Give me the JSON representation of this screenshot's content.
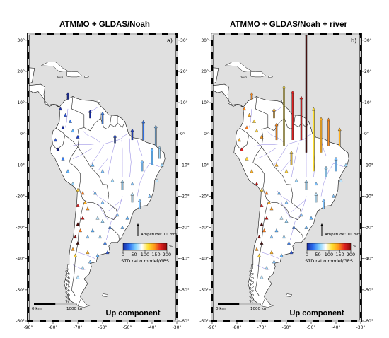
{
  "panels": [
    {
      "id": "a",
      "title": "ATMMO + GLDAS/Noah",
      "letter": "a)",
      "component": "Up component",
      "amplitude_label": "Amplitude: 10 mm",
      "scale_labels": [
        "0 km",
        "1000 km"
      ],
      "colorbar": {
        "ticks": [
          "0",
          "50",
          "100",
          "150",
          "200"
        ],
        "unit": "%",
        "label": "STD ratio model/GPS"
      },
      "arrows": [
        {
          "lon": -43.5,
          "lat": -2,
          "len": 28,
          "c": "#2f6fe0"
        },
        {
          "lon": -38.5,
          "lat": -4,
          "len": 30,
          "c": "#7fc3ff"
        },
        {
          "lon": -40,
          "lat": -10,
          "len": 24,
          "c": "#62b8ff"
        },
        {
          "lon": -37,
          "lat": -8,
          "len": 18,
          "c": "#9ad8ff"
        },
        {
          "lon": -44,
          "lat": -12,
          "len": 16,
          "c": "#7fc3ff"
        },
        {
          "lon": -48,
          "lat": -2,
          "len": 16,
          "c": "#1e3fc4"
        },
        {
          "lon": -55,
          "lat": -3,
          "len": 12,
          "c": "#2a4fd0"
        },
        {
          "lon": -60,
          "lat": 3,
          "len": 18,
          "c": "#3f7fe8"
        },
        {
          "lon": -65,
          "lat": 5,
          "len": 12,
          "c": "#14289a"
        },
        {
          "lon": -74,
          "lat": 11,
          "len": 10,
          "c": "#1a2a90"
        },
        {
          "lon": -52,
          "lat": -18,
          "len": 14,
          "c": "#9ad8ff"
        },
        {
          "lon": -48,
          "lat": -22,
          "len": 14,
          "c": "#bde6ff"
        },
        {
          "lon": -45,
          "lat": -24,
          "len": 14,
          "c": "#7fc3ff"
        }
      ],
      "triangles": [
        {
          "lon": -77,
          "lat": 8,
          "c": "#1b2fa8"
        },
        {
          "lon": -75,
          "lat": 6,
          "c": "#2a55d8"
        },
        {
          "lon": -73,
          "lat": 4,
          "c": "#3a7ff0"
        },
        {
          "lon": -76,
          "lat": 2,
          "c": "#14289a"
        },
        {
          "lon": -72,
          "lat": 1,
          "c": "#5fb4ff"
        },
        {
          "lon": -70,
          "lat": -1,
          "c": "#1e3fc4"
        },
        {
          "lon": -79,
          "lat": -2,
          "c": "#2a55d8"
        },
        {
          "lon": -78,
          "lat": -5,
          "c": "#0e1a7a"
        },
        {
          "lon": -76,
          "lat": -8,
          "c": "#3a7ff0"
        },
        {
          "lon": -74,
          "lat": -12,
          "c": "#5fb4ff"
        },
        {
          "lon": -72,
          "lat": -16,
          "c": "#9ad8ff"
        },
        {
          "lon": -70,
          "lat": -18,
          "c": "#ffd23a"
        },
        {
          "lon": -68,
          "lat": -19,
          "c": "#ff7a1a"
        },
        {
          "lon": -67,
          "lat": -22,
          "c": "#ffb020"
        },
        {
          "lon": -70,
          "lat": -23,
          "c": "#e02020"
        },
        {
          "lon": -66,
          "lat": -24,
          "c": "#ff9a1a"
        },
        {
          "lon": -68,
          "lat": -27,
          "c": "#c01010"
        },
        {
          "lon": -70,
          "lat": -29,
          "c": "#4a0a0a"
        },
        {
          "lon": -69,
          "lat": -31,
          "c": "#ff7a1a"
        },
        {
          "lon": -71,
          "lat": -33,
          "c": "#7a1010"
        },
        {
          "lon": -70,
          "lat": -35,
          "c": "#3a0808"
        },
        {
          "lon": -72,
          "lat": -37,
          "c": "#ff9a1a"
        },
        {
          "lon": -71,
          "lat": -39,
          "c": "#ffd23a"
        },
        {
          "lon": -66,
          "lat": -33,
          "c": "#7fc3ff"
        },
        {
          "lon": -64,
          "lat": -31,
          "c": "#5fb4ff"
        },
        {
          "lon": -61,
          "lat": -33,
          "c": "#9ad8ff"
        },
        {
          "lon": -59,
          "lat": -35,
          "c": "#3a7ff0"
        },
        {
          "lon": -58,
          "lat": -38,
          "c": "#2a55d8"
        },
        {
          "lon": -62,
          "lat": -39,
          "c": "#5fb4ff"
        },
        {
          "lon": -65,
          "lat": -41,
          "c": "#7fc3ff"
        },
        {
          "lon": -68,
          "lat": -43,
          "c": "#9ad8ff"
        },
        {
          "lon": -70,
          "lat": -46,
          "c": "#bde6ff"
        },
        {
          "lon": -66,
          "lat": -38,
          "c": "#ffb020"
        },
        {
          "lon": -54,
          "lat": -26,
          "c": "#7fc3ff"
        },
        {
          "lon": -52,
          "lat": -30,
          "c": "#5fb4ff"
        },
        {
          "lon": -57,
          "lat": -30,
          "c": "#3a7ff0"
        },
        {
          "lon": -60,
          "lat": -28,
          "c": "#9ad8ff"
        },
        {
          "lon": -62,
          "lat": -27,
          "c": "#bde6ff"
        },
        {
          "lon": -50,
          "lat": -27,
          "c": "#5fb4ff"
        },
        {
          "lon": -48,
          "lat": -16,
          "c": "#7fc3ff"
        },
        {
          "lon": -56,
          "lat": -15,
          "c": "#9ad8ff"
        },
        {
          "lon": -60,
          "lat": -12,
          "c": "#7fc3ff"
        },
        {
          "lon": -64,
          "lat": -10,
          "c": "#5fb4ff"
        },
        {
          "lon": -38,
          "lat": -15,
          "c": "#bde6ff"
        },
        {
          "lon": -36,
          "lat": -10,
          "c": "#9ad8ff"
        },
        {
          "lon": -41,
          "lat": -20,
          "c": "#7fc3ff"
        },
        {
          "lon": -60,
          "lat": -22,
          "c": "#7fc3ff"
        },
        {
          "lon": -63,
          "lat": -19,
          "c": "#5fb4ff"
        }
      ]
    },
    {
      "id": "b",
      "title": "ATMMO + GLDAS/Noah + river",
      "letter": "b)",
      "component": "Up component",
      "amplitude_label": "Amplitude: 10 mm",
      "scale_labels": [
        "0 km",
        "1000 km"
      ],
      "colorbar": {
        "ticks": [
          "0",
          "50",
          "100",
          "150",
          "200"
        ],
        "unit": "%",
        "label": "STD ratio model/GPS"
      },
      "arrows": [
        {
          "lon": -52,
          "lat": -6,
          "len": 210,
          "c": "#4a0808"
        },
        {
          "lon": -57.5,
          "lat": -2,
          "len": 70,
          "c": "#e02020"
        },
        {
          "lon": -54,
          "lat": -2,
          "len": 62,
          "c": "#e02020"
        },
        {
          "lon": -61,
          "lat": -4,
          "len": 86,
          "c": "#ffe030"
        },
        {
          "lon": -49,
          "lat": -12,
          "len": 90,
          "c": "#ffe030"
        },
        {
          "lon": -46,
          "lat": -6,
          "len": 50,
          "c": "#ffb020"
        },
        {
          "lon": -43,
          "lat": -4,
          "len": 40,
          "c": "#ff8a1a"
        },
        {
          "lon": -38.5,
          "lat": -4,
          "len": 26,
          "c": "#ffb020"
        },
        {
          "lon": -64,
          "lat": -2,
          "len": 24,
          "c": "#ff8a1a"
        },
        {
          "lon": -58,
          "lat": -10,
          "len": 20,
          "c": "#ffd040"
        },
        {
          "lon": -40,
          "lat": -12,
          "len": 20,
          "c": "#7fc3ff"
        },
        {
          "lon": -44,
          "lat": -14,
          "len": 16,
          "c": "#9ad8ff"
        },
        {
          "lon": -52,
          "lat": -18,
          "len": 14,
          "c": "#9ad8ff"
        },
        {
          "lon": -48,
          "lat": -22,
          "len": 14,
          "c": "#bde6ff"
        },
        {
          "lon": -45,
          "lat": -24,
          "len": 14,
          "c": "#7fc3ff"
        },
        {
          "lon": -74,
          "lat": 11,
          "len": 10,
          "c": "#ff8a1a"
        },
        {
          "lon": -65,
          "lat": 5,
          "len": 14,
          "c": "#ffb020"
        }
      ],
      "triangles": [
        {
          "lon": -77,
          "lat": 8,
          "c": "#ff8a1a"
        },
        {
          "lon": -75,
          "lat": 6,
          "c": "#ffb020"
        },
        {
          "lon": -73,
          "lat": 4,
          "c": "#ffd23a"
        },
        {
          "lon": -76,
          "lat": 2,
          "c": "#ff7a1a"
        },
        {
          "lon": -72,
          "lat": 1,
          "c": "#ffd23a"
        },
        {
          "lon": -70,
          "lat": -1,
          "c": "#ff9a1a"
        },
        {
          "lon": -79,
          "lat": -2,
          "c": "#ffb020"
        },
        {
          "lon": -78,
          "lat": -5,
          "c": "#e02020"
        },
        {
          "lon": -76,
          "lat": -8,
          "c": "#ffd23a"
        },
        {
          "lon": -74,
          "lat": -12,
          "c": "#ffb020"
        },
        {
          "lon": -72,
          "lat": -16,
          "c": "#c01010"
        },
        {
          "lon": -70,
          "lat": -18,
          "c": "#ffd23a"
        },
        {
          "lon": -68,
          "lat": -19,
          "c": "#ff7a1a"
        },
        {
          "lon": -67,
          "lat": -22,
          "c": "#ffb020"
        },
        {
          "lon": -70,
          "lat": -23,
          "c": "#e02020"
        },
        {
          "lon": -66,
          "lat": -24,
          "c": "#ff9a1a"
        },
        {
          "lon": -68,
          "lat": -27,
          "c": "#c01010"
        },
        {
          "lon": -70,
          "lat": -29,
          "c": "#4a0a0a"
        },
        {
          "lon": -69,
          "lat": -31,
          "c": "#ff7a1a"
        },
        {
          "lon": -71,
          "lat": -33,
          "c": "#7a1010"
        },
        {
          "lon": -70,
          "lat": -35,
          "c": "#3a0808"
        },
        {
          "lon": -72,
          "lat": -37,
          "c": "#ff9a1a"
        },
        {
          "lon": -71,
          "lat": -39,
          "c": "#ffd23a"
        },
        {
          "lon": -66,
          "lat": -33,
          "c": "#7fc3ff"
        },
        {
          "lon": -64,
          "lat": -31,
          "c": "#5fb4ff"
        },
        {
          "lon": -61,
          "lat": -33,
          "c": "#9ad8ff"
        },
        {
          "lon": -59,
          "lat": -35,
          "c": "#3a7ff0"
        },
        {
          "lon": -58,
          "lat": -38,
          "c": "#2a55d8"
        },
        {
          "lon": -62,
          "lat": -39,
          "c": "#5fb4ff"
        },
        {
          "lon": -65,
          "lat": -41,
          "c": "#7fc3ff"
        },
        {
          "lon": -68,
          "lat": -43,
          "c": "#9ad8ff"
        },
        {
          "lon": -70,
          "lat": -46,
          "c": "#bde6ff"
        },
        {
          "lon": -66,
          "lat": -38,
          "c": "#ffb020"
        },
        {
          "lon": -54,
          "lat": -26,
          "c": "#7fc3ff"
        },
        {
          "lon": -52,
          "lat": -30,
          "c": "#5fb4ff"
        },
        {
          "lon": -57,
          "lat": -30,
          "c": "#3a7ff0"
        },
        {
          "lon": -60,
          "lat": -28,
          "c": "#9ad8ff"
        },
        {
          "lon": -62,
          "lat": -27,
          "c": "#bde6ff"
        },
        {
          "lon": -50,
          "lat": -27,
          "c": "#5fb4ff"
        },
        {
          "lon": -48,
          "lat": -16,
          "c": "#7fc3ff"
        },
        {
          "lon": -56,
          "lat": -15,
          "c": "#9ad8ff"
        },
        {
          "lon": -60,
          "lat": -12,
          "c": "#ffd23a"
        },
        {
          "lon": -64,
          "lat": -10,
          "c": "#ffb020"
        },
        {
          "lon": -38,
          "lat": -15,
          "c": "#bde6ff"
        },
        {
          "lon": -36,
          "lat": -10,
          "c": "#9ad8ff"
        },
        {
          "lon": -41,
          "lat": -20,
          "c": "#7fc3ff"
        },
        {
          "lon": -60,
          "lat": -22,
          "c": "#7fc3ff"
        },
        {
          "lon": -63,
          "lat": -19,
          "c": "#5fb4ff"
        }
      ]
    }
  ],
  "map": {
    "lon_range": [
      -90,
      -30
    ],
    "lat_range": [
      -60,
      32
    ],
    "lon_ticks": [
      -90,
      -80,
      -70,
      -60,
      -50,
      -40,
      -30
    ],
    "lat_ticks": [
      30,
      20,
      10,
      0,
      -10,
      -20,
      -30,
      -40,
      -50,
      -60
    ],
    "lon_tick_labels": [
      "-90°",
      "-80°",
      "-70°",
      "-60°",
      "-50°",
      "-40°",
      "-30°"
    ],
    "lat_tick_labels": [
      "30°",
      "20°",
      "10°",
      "0°",
      "-10°",
      "-20°",
      "-30°",
      "-40°",
      "-50°",
      "-60°"
    ],
    "ocean_color": "#e0e0e0",
    "land_color": "#ffffff",
    "river_color": "#8a7fe0",
    "colorbar_stops": [
      "#1a2aa0",
      "#2a6ff0",
      "#7fd0ff",
      "#ffffff",
      "#ffe030",
      "#ff9a1a",
      "#e02020",
      "#8a0a0a"
    ]
  }
}
